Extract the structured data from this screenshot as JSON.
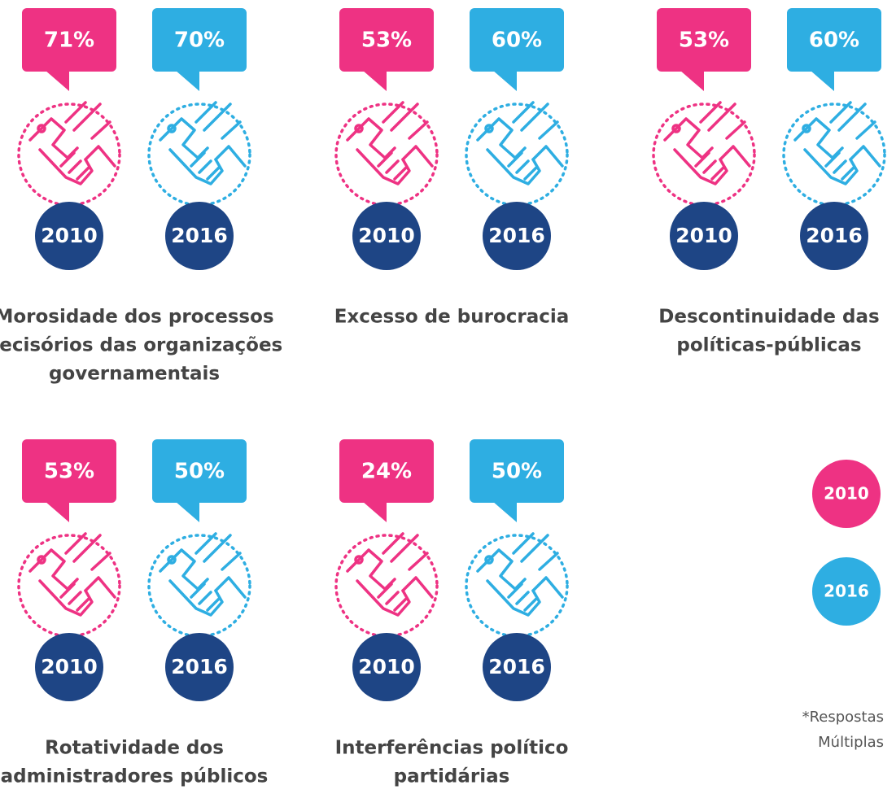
{
  "colors": [
    "#ee3283",
    "#2eaee2"
  ],
  "items": [
    {
      "label": [
        "Morosidade dos processos",
        "decisórios das organizações",
        "governamentais"
      ],
      "bubbles": [
        {
          "pct": "71%",
          "year": "2010"
        },
        {
          "pct": "70%",
          "year": "2016"
        }
      ]
    },
    {
      "label": [
        "Excesso de burocracia"
      ],
      "bubbles": [
        {
          "pct": "53%",
          "year": "2010"
        },
        {
          "pct": "60%",
          "year": "2016"
        }
      ]
    },
    {
      "label": [
        "Descontinuidade das",
        "políticas-públicas"
      ],
      "bubbles": [
        {
          "pct": "53%",
          "year": "2010"
        },
        {
          "pct": "60%",
          "year": "2016"
        }
      ]
    },
    {
      "label": [
        "Rotatividade dos",
        "administradores públicos"
      ],
      "bubbles": [
        {
          "pct": "53%",
          "year": "2010"
        },
        {
          "pct": "50%",
          "year": "2016"
        }
      ]
    },
    {
      "label": [
        "Interferências político",
        "partidárias"
      ],
      "bubbles": [
        {
          "pct": "24%",
          "year": "2010"
        },
        {
          "pct": "50%",
          "year": "2016"
        }
      ]
    }
  ],
  "legend": [
    "2010",
    "2016"
  ],
  "note": [
    "*Respostas",
    "Múltiplas"
  ]
}
